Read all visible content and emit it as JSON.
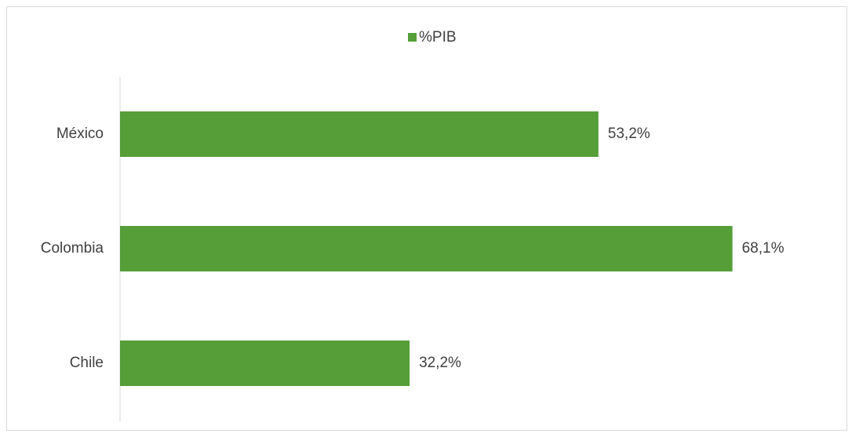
{
  "chart_data": {
    "type": "bar",
    "orientation": "horizontal",
    "categories": [
      "México",
      "Colombia",
      "Chile"
    ],
    "series": [
      {
        "name": "%PIB",
        "color": "#559e38",
        "values": [
          53.2,
          68.1,
          32.2
        ],
        "value_labels": [
          "53,2%",
          "68,1%",
          "32,2%"
        ]
      }
    ],
    "xlim": [
      0,
      80
    ],
    "grid": false,
    "legend": "top"
  }
}
